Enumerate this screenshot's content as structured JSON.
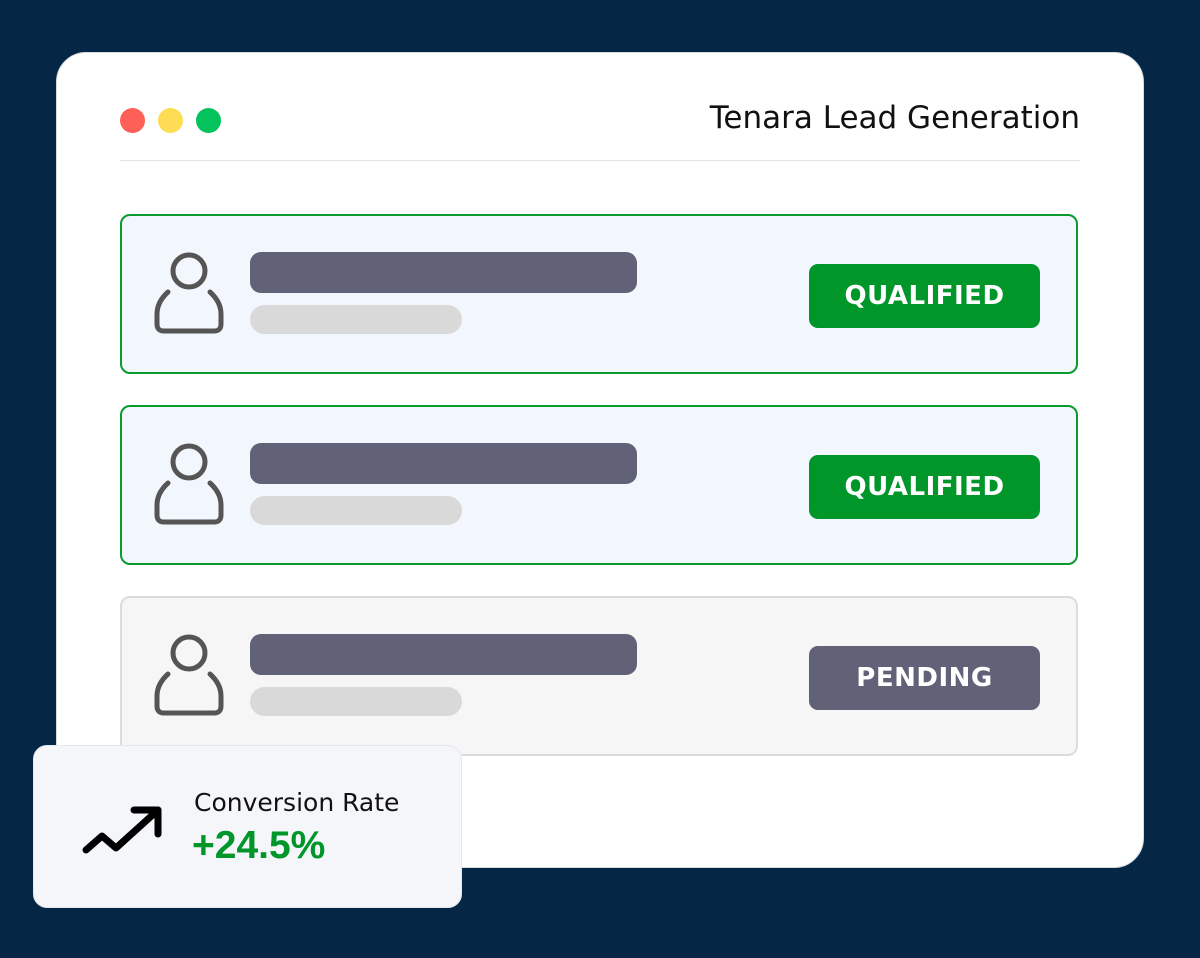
{
  "window": {
    "title": "Tenara Lead Generation",
    "controls": [
      {
        "name": "close",
        "color": "#fe5f57"
      },
      {
        "name": "minimize",
        "color": "#fedc54"
      },
      {
        "name": "maximize",
        "color": "#04c35c"
      }
    ]
  },
  "leads": [
    {
      "status": "QUALIFIED",
      "status_color": "#00962a"
    },
    {
      "status": "QUALIFIED",
      "status_color": "#00962a"
    },
    {
      "status": "PENDING",
      "status_color": "#616278"
    }
  ],
  "metric": {
    "icon": "trending-up-icon",
    "label": "Conversion Rate",
    "value": "+24.5%",
    "value_color": "#00962a"
  }
}
